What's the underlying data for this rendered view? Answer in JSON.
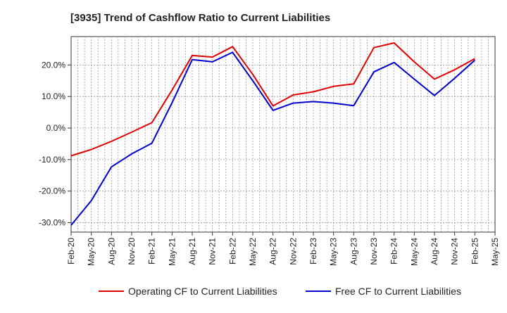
{
  "chart_data": {
    "type": "line",
    "title": "[3935]  Trend of Cashflow Ratio to Current Liabilities",
    "xlabel": "",
    "ylabel": "",
    "ylim": [
      -33,
      29
    ],
    "y_ticks": [
      -30,
      -20,
      -10,
      0,
      10,
      20
    ],
    "y_tick_labels": [
      "-30.0%",
      "-20.0%",
      "-10.0%",
      "0.0%",
      "10.0%",
      "20.0%"
    ],
    "x_tick_labels": [
      "Feb-20",
      "May-20",
      "Aug-20",
      "Nov-20",
      "Feb-21",
      "May-21",
      "Aug-21",
      "Nov-21",
      "Feb-22",
      "May-22",
      "Aug-22",
      "Nov-22",
      "Feb-23",
      "May-23",
      "Aug-23",
      "Nov-23",
      "Feb-24",
      "May-24",
      "Aug-24",
      "Nov-24",
      "Feb-25",
      "May-25"
    ],
    "grid": true,
    "legend_position": "bottom",
    "series": [
      {
        "name": "Operating CF to Current Liabilities",
        "color": "#e00000",
        "values": [
          -8.8,
          -6.8,
          -4.2,
          -1.3,
          1.7,
          12.0,
          23.0,
          22.5,
          25.8,
          17.0,
          7.0,
          10.5,
          11.5,
          13.2,
          14.0,
          25.5,
          27.0,
          21.0,
          15.5,
          18.5,
          22.0
        ]
      },
      {
        "name": "Free CF to Current Liabilities",
        "color": "#0000cc",
        "values": [
          -30.8,
          -23.0,
          -12.3,
          -8.2,
          -4.8,
          8.0,
          21.7,
          21.0,
          24.0,
          15.0,
          5.6,
          7.9,
          8.4,
          7.9,
          7.1,
          17.8,
          20.8,
          15.5,
          10.3,
          15.8,
          21.5
        ]
      }
    ]
  }
}
